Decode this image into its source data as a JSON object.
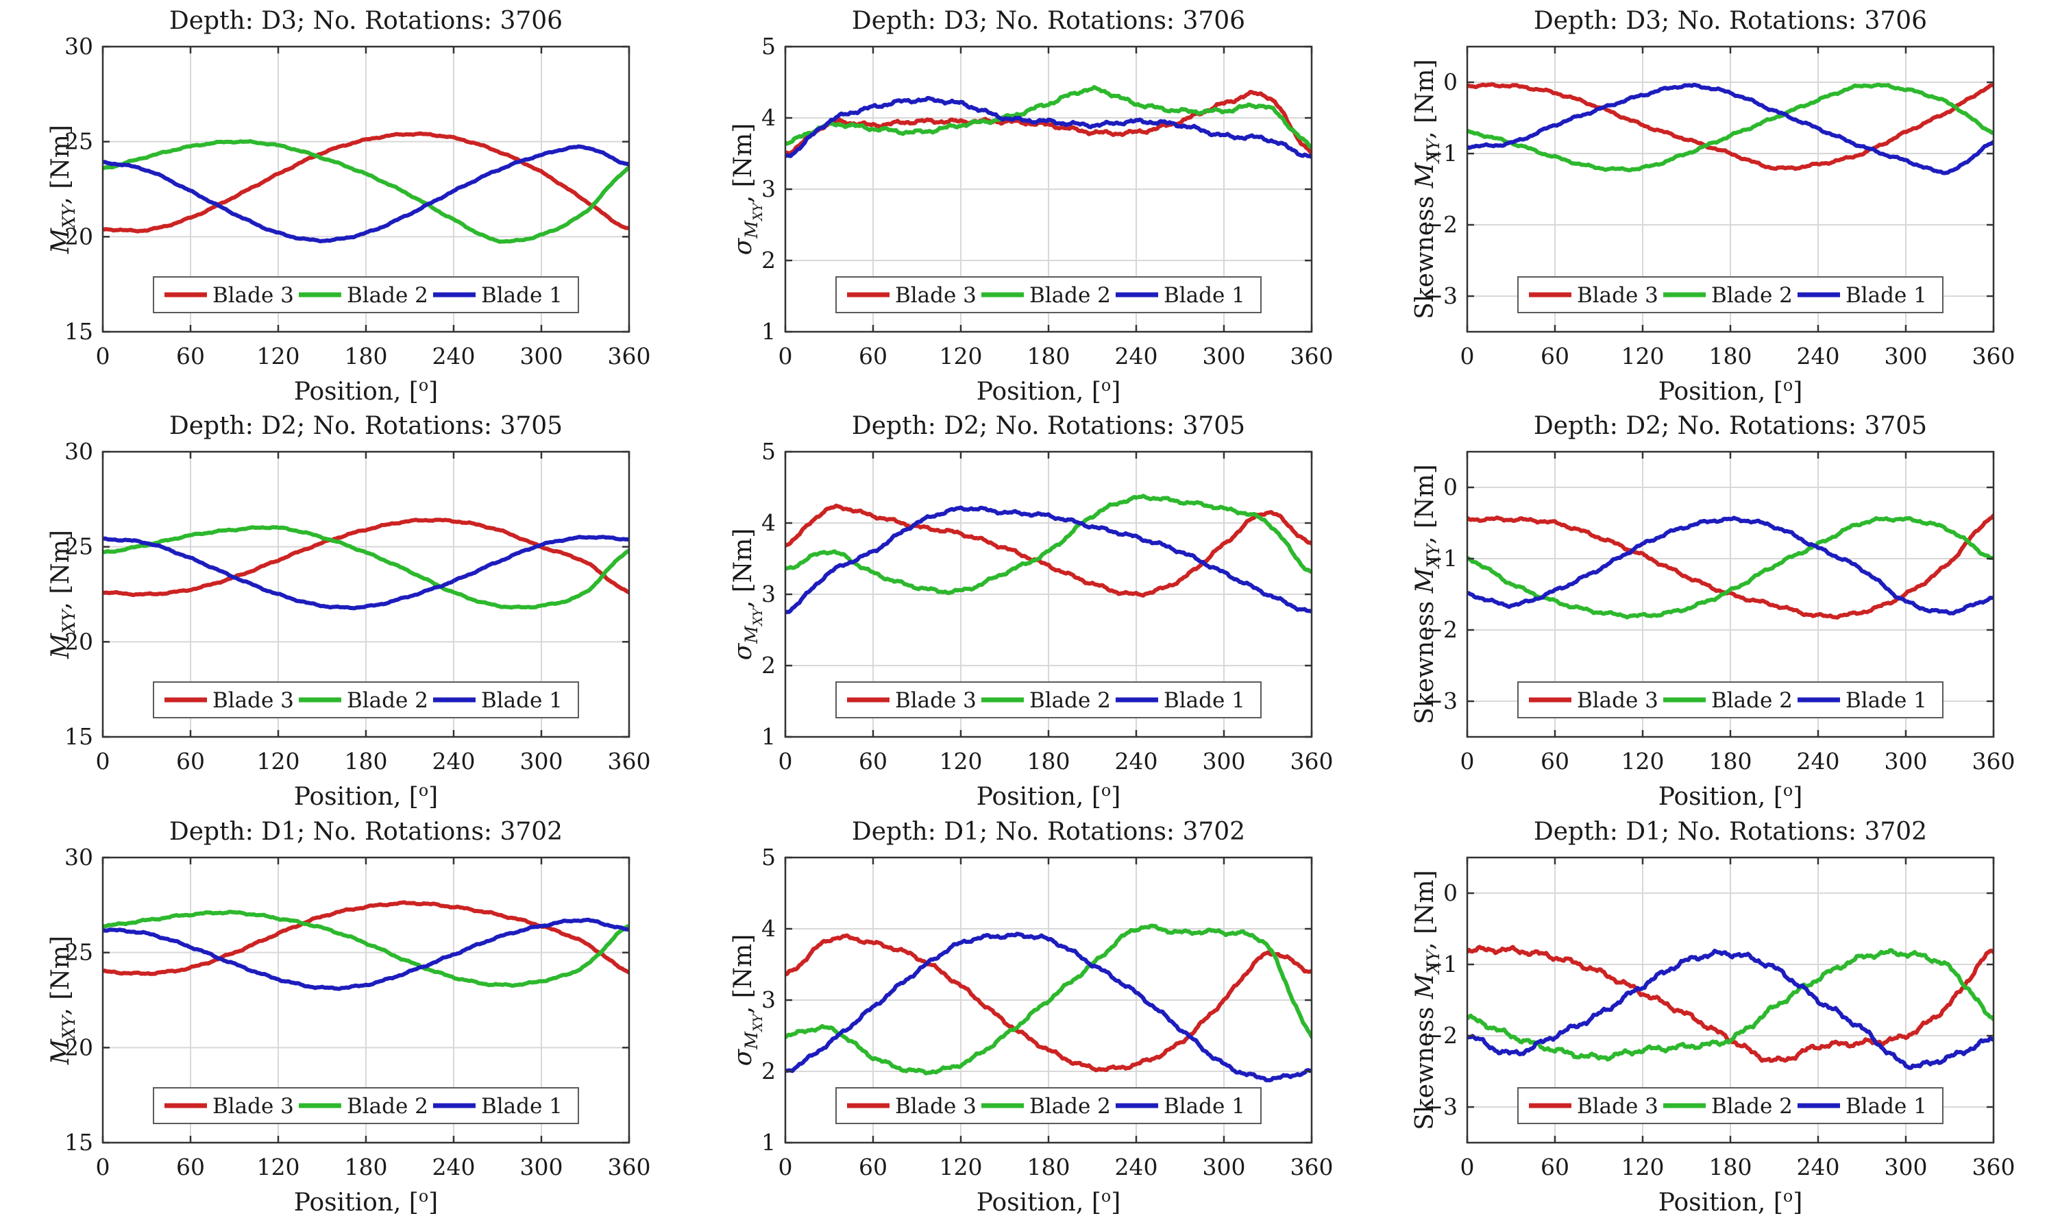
{
  "figure": {
    "background": "#ffffff",
    "axis_color": "#333333",
    "grid_color": "#d8d8d8",
    "text_color": "#1a1a1a",
    "legend_border_color": "#5a5a5a",
    "palette": {
      "Blade 3": "#cc2323",
      "Blade 2": "#2db82d",
      "Blade 1": "#1d1dbe"
    },
    "legend_labels": [
      "Blade 3",
      "Blade 2",
      "Blade 1"
    ],
    "x_points": [
      0,
      30,
      60,
      90,
      120,
      150,
      180,
      210,
      240,
      270,
      300,
      330,
      360
    ],
    "xlim": [
      0,
      360
    ],
    "xticks": [
      0,
      60,
      120,
      180,
      240,
      300,
      360
    ],
    "xlabel_tokens": [
      [
        "Position, [",
        "n"
      ],
      [
        "o",
        "sup"
      ],
      [
        "]",
        "n"
      ]
    ],
    "ylabels": {
      "mean": [
        [
          "M",
          "i"
        ],
        [
          "XY",
          "s"
        ],
        [
          ", [Nm]",
          "n"
        ]
      ],
      "std": [
        [
          "σ",
          "i"
        ],
        [
          "M",
          "s"
        ],
        [
          "XY",
          "ss"
        ],
        [
          ", [Nm]",
          "n"
        ]
      ],
      "skew": [
        [
          "Skewness ",
          "n"
        ],
        [
          "M",
          "i"
        ],
        [
          "XY",
          "s"
        ],
        [
          ", [Nm]",
          "n"
        ]
      ]
    }
  },
  "chart_data": [
    {
      "id": "d3-mean",
      "type": "line",
      "title": "Depth: D3; No. Rotations: 3706",
      "xlabel": "Position, [^o]",
      "ylabel_key": "mean",
      "ylim": [
        15,
        30
      ],
      "yticks": [
        15,
        20,
        25,
        30
      ],
      "grid": true,
      "legend_position": "south",
      "noise": 0.05,
      "series": [
        {
          "name": "Blade 3",
          "values": [
            20.4,
            20.35,
            21.0,
            22.1,
            23.3,
            24.4,
            25.1,
            25.4,
            25.2,
            24.5,
            23.4,
            21.9,
            20.4
          ]
        },
        {
          "name": "Blade 2",
          "values": [
            23.6,
            24.2,
            24.75,
            25.0,
            24.8,
            24.15,
            23.3,
            22.2,
            20.9,
            19.8,
            20.1,
            21.3,
            23.6
          ]
        },
        {
          "name": "Blade 1",
          "values": [
            23.9,
            23.5,
            22.4,
            21.2,
            20.2,
            19.8,
            20.2,
            21.2,
            22.4,
            23.5,
            24.3,
            24.7,
            23.8
          ]
        }
      ]
    },
    {
      "id": "d3-std",
      "type": "line",
      "title": "Depth: D3; No. Rotations: 3706",
      "xlabel": "Position, [^o]",
      "ylabel_key": "std",
      "ylim": [
        1,
        5
      ],
      "yticks": [
        1,
        2,
        3,
        4,
        5
      ],
      "grid": true,
      "legend_position": "south",
      "noise": 0.035,
      "series": [
        {
          "name": "Blade 3",
          "values": [
            3.5,
            3.92,
            3.9,
            3.95,
            3.95,
            3.95,
            3.9,
            3.8,
            3.8,
            3.95,
            4.2,
            4.3,
            3.5
          ]
        },
        {
          "name": "Blade 2",
          "values": [
            3.65,
            3.9,
            3.85,
            3.8,
            3.9,
            4.0,
            4.2,
            4.4,
            4.2,
            4.1,
            4.1,
            4.15,
            3.6
          ]
        },
        {
          "name": "Blade 1",
          "values": [
            3.45,
            3.95,
            4.15,
            4.25,
            4.2,
            4.0,
            3.95,
            3.9,
            3.95,
            3.9,
            3.75,
            3.7,
            3.45
          ]
        }
      ]
    },
    {
      "id": "d3-skew",
      "type": "line",
      "title": "Depth: D3; No. Rotations: 3706",
      "xlabel": "Position, [^o]",
      "ylabel_key": "skew",
      "ylim": [
        -3.5,
        0.5
      ],
      "yticks": [
        0,
        -1,
        -2,
        -3
      ],
      "grid": true,
      "legend_position": "south",
      "noise": 0.022,
      "series": [
        {
          "name": "Blade 3",
          "values": [
            -0.05,
            -0.05,
            -0.15,
            -0.35,
            -0.6,
            -0.8,
            -1.0,
            -1.2,
            -1.15,
            -1.0,
            -0.7,
            -0.4,
            -0.05
          ]
        },
        {
          "name": "Blade 2",
          "values": [
            -0.7,
            -0.85,
            -1.05,
            -1.2,
            -1.2,
            -1.0,
            -0.75,
            -0.5,
            -0.25,
            -0.05,
            -0.1,
            -0.3,
            -0.7
          ]
        },
        {
          "name": "Blade 1",
          "values": [
            -0.9,
            -0.85,
            -0.6,
            -0.38,
            -0.18,
            -0.05,
            -0.15,
            -0.4,
            -0.65,
            -0.9,
            -1.1,
            -1.25,
            -0.85
          ]
        }
      ]
    },
    {
      "id": "d2-mean",
      "type": "line",
      "title": "Depth: D2; No. Rotations: 3705",
      "xlabel": "Position, [^o]",
      "ylabel_key": "mean",
      "ylim": [
        15,
        30
      ],
      "yticks": [
        15,
        20,
        25,
        30
      ],
      "grid": true,
      "legend_position": "south",
      "noise": 0.05,
      "series": [
        {
          "name": "Blade 3",
          "values": [
            22.6,
            22.5,
            22.75,
            23.4,
            24.3,
            25.2,
            25.9,
            26.35,
            26.35,
            25.9,
            25.0,
            24.2,
            22.6
          ]
        },
        {
          "name": "Blade 2",
          "values": [
            24.7,
            25.1,
            25.6,
            25.9,
            26.0,
            25.5,
            24.7,
            23.7,
            22.6,
            21.9,
            21.9,
            22.6,
            24.8
          ]
        },
        {
          "name": "Blade 1",
          "values": [
            25.4,
            25.2,
            24.4,
            23.4,
            22.5,
            21.9,
            21.85,
            22.4,
            23.2,
            24.2,
            25.1,
            25.5,
            25.4
          ]
        }
      ]
    },
    {
      "id": "d2-std",
      "type": "line",
      "title": "Depth: D2; No. Rotations: 3705",
      "xlabel": "Position, [^o]",
      "ylabel_key": "std",
      "ylim": [
        1,
        5
      ],
      "yticks": [
        1,
        2,
        3,
        4,
        5
      ],
      "grid": true,
      "legend_position": "south",
      "noise": 0.03,
      "series": [
        {
          "name": "Blade 3",
          "values": [
            3.7,
            4.2,
            4.1,
            3.95,
            3.85,
            3.65,
            3.4,
            3.15,
            3.0,
            3.2,
            3.7,
            4.15,
            3.7
          ]
        },
        {
          "name": "Blade 2",
          "values": [
            3.35,
            3.6,
            3.3,
            3.1,
            3.05,
            3.3,
            3.6,
            4.1,
            4.35,
            4.3,
            4.2,
            4.0,
            3.3
          ]
        },
        {
          "name": "Blade 1",
          "values": [
            2.75,
            3.3,
            3.6,
            4.0,
            4.2,
            4.15,
            4.1,
            3.95,
            3.8,
            3.6,
            3.3,
            3.0,
            2.75
          ]
        }
      ]
    },
    {
      "id": "d2-skew",
      "type": "line",
      "title": "Depth: D2; No. Rotations: 3705",
      "xlabel": "Position, [^o]",
      "ylabel_key": "skew",
      "ylim": [
        -3.5,
        0.5
      ],
      "yticks": [
        0,
        -1,
        -2,
        -3
      ],
      "grid": true,
      "legend_position": "south",
      "noise": 0.028,
      "series": [
        {
          "name": "Blade 3",
          "values": [
            -0.45,
            -0.45,
            -0.5,
            -0.7,
            -0.95,
            -1.25,
            -1.5,
            -1.65,
            -1.8,
            -1.75,
            -1.5,
            -1.05,
            -0.4
          ]
        },
        {
          "name": "Blade 2",
          "values": [
            -1.0,
            -1.35,
            -1.6,
            -1.75,
            -1.8,
            -1.7,
            -1.45,
            -1.1,
            -0.8,
            -0.5,
            -0.45,
            -0.6,
            -1.0
          ]
        },
        {
          "name": "Blade 1",
          "values": [
            -1.5,
            -1.65,
            -1.45,
            -1.15,
            -0.8,
            -0.55,
            -0.45,
            -0.55,
            -0.85,
            -1.15,
            -1.6,
            -1.75,
            -1.55
          ]
        }
      ]
    },
    {
      "id": "d1-mean",
      "type": "line",
      "title": "Depth: D1; No. Rotations: 3702",
      "xlabel": "Position, [^o]",
      "ylabel_key": "mean",
      "ylim": [
        15,
        30
      ],
      "yticks": [
        15,
        20,
        25,
        30
      ],
      "grid": true,
      "legend_position": "south",
      "noise": 0.06,
      "series": [
        {
          "name": "Blade 3",
          "values": [
            24.0,
            23.9,
            24.2,
            25.0,
            26.0,
            26.9,
            27.4,
            27.6,
            27.4,
            27.0,
            26.4,
            25.5,
            24.0
          ]
        },
        {
          "name": "Blade 2",
          "values": [
            26.4,
            26.7,
            27.0,
            27.1,
            26.8,
            26.3,
            25.5,
            24.5,
            23.7,
            23.3,
            23.5,
            24.3,
            26.4
          ]
        },
        {
          "name": "Blade 1",
          "values": [
            26.2,
            26.0,
            25.3,
            24.4,
            23.6,
            23.15,
            23.3,
            24.0,
            24.9,
            25.8,
            26.4,
            26.7,
            26.2
          ]
        }
      ]
    },
    {
      "id": "d1-std",
      "type": "line",
      "title": "Depth: D1; No. Rotations: 3702",
      "xlabel": "Position, [^o]",
      "ylabel_key": "std",
      "ylim": [
        1,
        5
      ],
      "yticks": [
        1,
        2,
        3,
        4,
        5
      ],
      "grid": true,
      "legend_position": "south",
      "noise": 0.035,
      "series": [
        {
          "name": "Blade 3",
          "values": [
            3.35,
            3.85,
            3.8,
            3.6,
            3.2,
            2.7,
            2.3,
            2.05,
            2.1,
            2.4,
            3.0,
            3.65,
            3.4
          ]
        },
        {
          "name": "Blade 2",
          "values": [
            2.5,
            2.6,
            2.2,
            2.0,
            2.1,
            2.5,
            3.0,
            3.5,
            4.0,
            3.95,
            3.95,
            3.75,
            2.5
          ]
        },
        {
          "name": "Blade 1",
          "values": [
            2.0,
            2.4,
            2.9,
            3.4,
            3.8,
            3.9,
            3.85,
            3.5,
            3.1,
            2.6,
            2.1,
            1.9,
            2.0
          ]
        }
      ]
    },
    {
      "id": "d1-skew",
      "type": "line",
      "title": "Depth: D1; No. Rotations: 3702",
      "xlabel": "Position, [^o]",
      "ylabel_key": "skew",
      "ylim": [
        -3.5,
        0.5
      ],
      "yticks": [
        0,
        -1,
        -2,
        -3
      ],
      "grid": true,
      "legend_position": "south",
      "noise": 0.05,
      "series": [
        {
          "name": "Blade 3",
          "values": [
            -0.8,
            -0.8,
            -0.9,
            -1.1,
            -1.4,
            -1.7,
            -2.05,
            -2.35,
            -2.15,
            -2.1,
            -2.0,
            -1.55,
            -0.8
          ]
        },
        {
          "name": "Blade 2",
          "values": [
            -1.75,
            -2.0,
            -2.2,
            -2.3,
            -2.2,
            -2.15,
            -2.05,
            -1.6,
            -1.2,
            -0.9,
            -0.85,
            -1.05,
            -1.75
          ]
        },
        {
          "name": "Blade 1",
          "values": [
            -2.0,
            -2.25,
            -2.0,
            -1.7,
            -1.3,
            -0.95,
            -0.85,
            -1.05,
            -1.5,
            -1.9,
            -2.4,
            -2.3,
            -2.05
          ]
        }
      ]
    }
  ]
}
